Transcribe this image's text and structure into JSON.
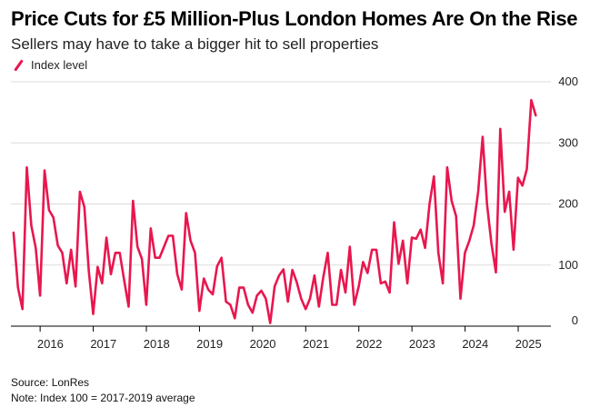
{
  "header": {
    "title": "Price Cuts for £5 Million-Plus London Homes Are On the Rise",
    "subtitle": "Sellers may have to take a bigger hit to sell properties"
  },
  "legend": {
    "label": "Index level"
  },
  "footer": {
    "source": "Source: LonRes",
    "note": "Note: Index 100 = 2017-2019 average"
  },
  "colors": {
    "series": "#e8174e",
    "grid": "#dcdcdc",
    "axis": "#000000"
  },
  "chart_data": {
    "type": "line",
    "title": "Price Cuts for £5 Million-Plus London Homes Are On the Rise",
    "xlabel": "",
    "ylabel": "Index level",
    "ylim": [
      0,
      400
    ],
    "xlim": [
      2015.45,
      2025.65
    ],
    "y_ticks": [
      0,
      100,
      200,
      300,
      400
    ],
    "y_tick_labels": [
      "0",
      "100",
      "200",
      "300",
      "400"
    ],
    "x_ticks": [
      2016,
      2017,
      2018,
      2019,
      2020,
      2021,
      2022,
      2023,
      2024,
      2025
    ],
    "x_tick_labels": [
      "2016",
      "2017",
      "2018",
      "2019",
      "2020",
      "2021",
      "2022",
      "2023",
      "2024",
      "2025"
    ],
    "grid": true,
    "series": [
      {
        "name": "Index level",
        "start": 2015.5,
        "step": 0.0833,
        "values": [
          153,
          63,
          28,
          260,
          165,
          128,
          50,
          255,
          190,
          178,
          132,
          120,
          70,
          125,
          65,
          220,
          195,
          90,
          20,
          97,
          70,
          145,
          85,
          120,
          120,
          75,
          32,
          205,
          130,
          110,
          35,
          160,
          112,
          112,
          130,
          148,
          148,
          85,
          60,
          185,
          140,
          120,
          25,
          78,
          60,
          52,
          98,
          112,
          40,
          35,
          13,
          63,
          63,
          35,
          22,
          50,
          58,
          45,
          5,
          65,
          83,
          93,
          40,
          92,
          72,
          45,
          28,
          45,
          83,
          32,
          80,
          120,
          35,
          35,
          92,
          55,
          130,
          35,
          65,
          105,
          87,
          125,
          125,
          70,
          73,
          55,
          170,
          102,
          140,
          70,
          145,
          143,
          158,
          128,
          200,
          245,
          120,
          70,
          260,
          205,
          180,
          45,
          120,
          140,
          165,
          220,
          310,
          200,
          135,
          88,
          323,
          187,
          220,
          125,
          243,
          230,
          257,
          370,
          345
        ]
      }
    ]
  }
}
